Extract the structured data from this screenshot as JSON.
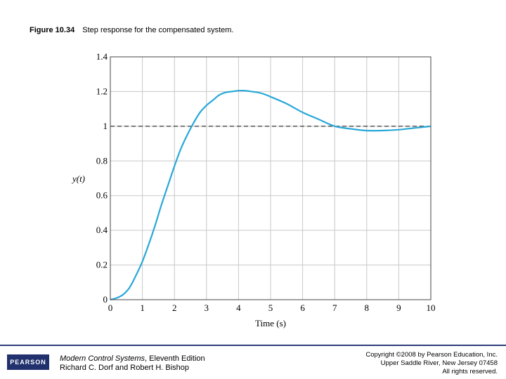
{
  "caption": {
    "figure_number": "Figure 10.34",
    "text": "Step response for the compensated system."
  },
  "chart_data": {
    "type": "line",
    "title": "Step response for the compensated system.",
    "xlabel": "Time (s)",
    "ylabel": "y(t)",
    "xlim": [
      0,
      10
    ],
    "ylim": [
      0,
      1.4
    ],
    "x_ticks": [
      0,
      1,
      2,
      3,
      4,
      5,
      6,
      7,
      8,
      9,
      10
    ],
    "y_ticks": [
      "0",
      "0.2",
      "0.4",
      "0.6",
      "0.8",
      "1",
      "1.2",
      "1.4"
    ],
    "grid": true,
    "reference_line": {
      "y": 1.0,
      "style": "dashed",
      "color": "#333333"
    },
    "series": [
      {
        "name": "y(t)",
        "color": "#29a8d8",
        "x": [
          0,
          0.2,
          0.4,
          0.6,
          0.8,
          1.0,
          1.2,
          1.4,
          1.6,
          1.8,
          2.0,
          2.2,
          2.4,
          2.6,
          2.8,
          3.0,
          3.2,
          3.4,
          3.6,
          3.8,
          4.0,
          4.2,
          4.4,
          4.6,
          4.8,
          5.0,
          5.5,
          6.0,
          6.5,
          7.0,
          7.5,
          8.0,
          8.5,
          9.0,
          9.5,
          10.0
        ],
        "y": [
          0,
          0.01,
          0.03,
          0.07,
          0.14,
          0.22,
          0.32,
          0.43,
          0.55,
          0.66,
          0.77,
          0.87,
          0.95,
          1.02,
          1.08,
          1.12,
          1.15,
          1.18,
          1.195,
          1.2,
          1.205,
          1.205,
          1.2,
          1.195,
          1.185,
          1.17,
          1.13,
          1.08,
          1.04,
          1.0,
          0.985,
          0.975,
          0.975,
          0.98,
          0.99,
          1.0
        ]
      }
    ]
  },
  "footer": {
    "logo_text": "PEARSON",
    "book_title": "Modern Control Systems",
    "book_edition": ", Eleventh Edition",
    "authors": "Richard C. Dorf and Robert H. Bishop",
    "copyright_line1": "Copyright ©2008 by Pearson Education, Inc.",
    "copyright_line2": "Upper Saddle River, New Jersey 07458",
    "copyright_line3": "All rights reserved."
  }
}
